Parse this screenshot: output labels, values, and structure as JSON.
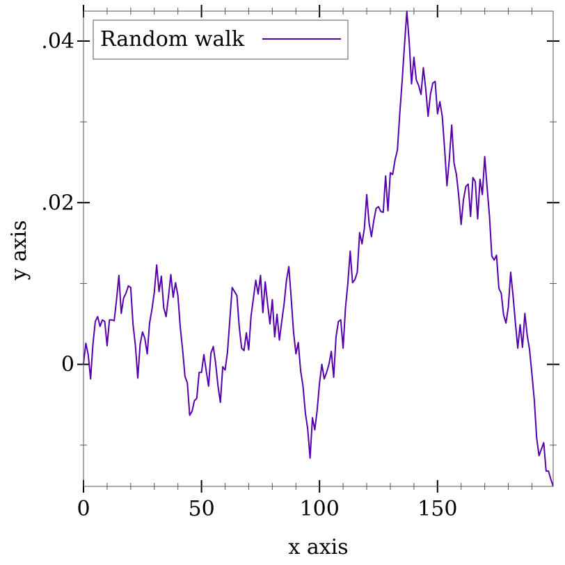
{
  "chart_data": {
    "type": "line",
    "xlabel": "x axis",
    "ylabel": "y axis",
    "xlim": [
      0,
      199
    ],
    "ylim": [
      -0.0151,
      0.0437
    ],
    "x_ticks": [
      {
        "value": 0,
        "label": "0"
      },
      {
        "value": 50,
        "label": "50"
      },
      {
        "value": 100,
        "label": "100"
      },
      {
        "value": 150,
        "label": "150"
      }
    ],
    "y_ticks": [
      {
        "value": 0,
        "label": "0"
      },
      {
        "value": 0.02,
        "label": ".02"
      },
      {
        "value": 0.04,
        "label": ".04"
      }
    ],
    "x_minor_ticks": [
      10,
      20,
      30,
      40,
      60,
      70,
      80,
      90,
      110,
      120,
      130,
      140,
      160,
      170,
      180,
      190
    ],
    "y_minor_ticks": [
      -0.01,
      0.01,
      0.03
    ],
    "grid": false,
    "legend_position": "top-left",
    "series": [
      {
        "name": "Random walk",
        "color": "#5500aa",
        "points": [
          [
            0,
            0.0001
          ],
          [
            1,
            0.0026
          ],
          [
            2,
            0.0012
          ],
          [
            3,
            -0.0018
          ],
          [
            4,
            0.0025
          ],
          [
            5,
            0.0053
          ],
          [
            6,
            0.0059
          ],
          [
            7,
            0.0047
          ],
          [
            8,
            0.0055
          ],
          [
            9,
            0.0053
          ],
          [
            10,
            0.0023
          ],
          [
            11,
            0.0055
          ],
          [
            12,
            0.0055
          ],
          [
            13,
            0.0054
          ],
          [
            14,
            0.008
          ],
          [
            15,
            0.011
          ],
          [
            16,
            0.0063
          ],
          [
            17,
            0.0082
          ],
          [
            18,
            0.0088
          ],
          [
            19,
            0.0097
          ],
          [
            20,
            0.0095
          ],
          [
            21,
            0.0049
          ],
          [
            22,
            0.0023
          ],
          [
            23,
            -0.0017
          ],
          [
            24,
            0.0025
          ],
          [
            25,
            0.004
          ],
          [
            26,
            0.0032
          ],
          [
            27,
            0.0013
          ],
          [
            28,
            0.0051
          ],
          [
            29,
            0.0068
          ],
          [
            30,
            0.0089
          ],
          [
            31,
            0.0123
          ],
          [
            32,
            0.009
          ],
          [
            33,
            0.0109
          ],
          [
            34,
            0.007
          ],
          [
            35,
            0.0059
          ],
          [
            36,
            0.0084
          ],
          [
            37,
            0.0111
          ],
          [
            38,
            0.0083
          ],
          [
            39,
            0.0101
          ],
          [
            40,
            0.0085
          ],
          [
            41,
            0.0046
          ],
          [
            42,
            0.0018
          ],
          [
            43,
            -0.0015
          ],
          [
            44,
            -0.0023
          ],
          [
            45,
            -0.0063
          ],
          [
            46,
            -0.0058
          ],
          [
            47,
            -0.0045
          ],
          [
            48,
            -0.0042
          ],
          [
            49,
            -0.001
          ],
          [
            50,
            -0.001
          ],
          [
            51,
            0.0012
          ],
          [
            52,
            -0.0008
          ],
          [
            53,
            -0.0027
          ],
          [
            54,
            0.0014
          ],
          [
            55,
            0.0022
          ],
          [
            56,
            0.0001
          ],
          [
            57,
            -0.0027
          ],
          [
            58,
            -0.0047
          ],
          [
            59,
            -0.0003
          ],
          [
            60,
            -0.0007
          ],
          [
            61,
            0.0015
          ],
          [
            62,
            0.0055
          ],
          [
            63,
            0.0095
          ],
          [
            64,
            0.009
          ],
          [
            65,
            0.0085
          ],
          [
            66,
            0.0046
          ],
          [
            67,
            0.002
          ],
          [
            68,
            0.0017
          ],
          [
            69,
            0.0039
          ],
          [
            70,
            0.0018
          ],
          [
            71,
            0.006
          ],
          [
            72,
            0.0082
          ],
          [
            73,
            0.0104
          ],
          [
            74,
            0.0087
          ],
          [
            75,
            0.011
          ],
          [
            76,
            0.0064
          ],
          [
            77,
            0.0102
          ],
          [
            78,
            0.0075
          ],
          [
            79,
            0.005
          ],
          [
            80,
            0.008
          ],
          [
            81,
            0.0034
          ],
          [
            82,
            0.0062
          ],
          [
            83,
            0.003
          ],
          [
            84,
            0.0053
          ],
          [
            85,
            0.0075
          ],
          [
            86,
            0.0104
          ],
          [
            87,
            0.0121
          ],
          [
            88,
            0.0082
          ],
          [
            89,
            0.004
          ],
          [
            90,
            0.0013
          ],
          [
            91,
            0.0027
          ],
          [
            92,
            -0.0008
          ],
          [
            93,
            -0.0027
          ],
          [
            94,
            -0.006
          ],
          [
            95,
            -0.008
          ],
          [
            96,
            -0.0116
          ],
          [
            97,
            -0.0066
          ],
          [
            98,
            -0.0081
          ],
          [
            99,
            -0.0057
          ],
          [
            100,
            -0.0023
          ],
          [
            101,
            0.0
          ],
          [
            102,
            -0.0018
          ],
          [
            103,
            -0.001
          ],
          [
            104,
            0.0
          ],
          [
            105,
            0.0016
          ],
          [
            106,
            -0.0016
          ],
          [
            107,
            0.0034
          ],
          [
            108,
            0.0053
          ],
          [
            109,
            0.0055
          ],
          [
            110,
            0.002
          ],
          [
            111,
            0.007
          ],
          [
            112,
            0.01
          ],
          [
            113,
            0.014
          ],
          [
            114,
            0.0101
          ],
          [
            115,
            0.0105
          ],
          [
            116,
            0.0114
          ],
          [
            117,
            0.0163
          ],
          [
            118,
            0.0149
          ],
          [
            119,
            0.0168
          ],
          [
            120,
            0.021
          ],
          [
            121,
            0.0175
          ],
          [
            122,
            0.0158
          ],
          [
            123,
            0.0178
          ],
          [
            124,
            0.0193
          ],
          [
            125,
            0.0195
          ],
          [
            126,
            0.0189
          ],
          [
            127,
            0.0188
          ],
          [
            128,
            0.0233
          ],
          [
            129,
            0.019
          ],
          [
            130,
            0.0237
          ],
          [
            131,
            0.0235
          ],
          [
            132,
            0.0253
          ],
          [
            133,
            0.0265
          ],
          [
            134,
            0.031
          ],
          [
            135,
            0.035
          ],
          [
            136,
            0.0395
          ],
          [
            137,
            0.0437
          ],
          [
            138,
            0.0399
          ],
          [
            139,
            0.0347
          ],
          [
            140,
            0.038
          ],
          [
            141,
            0.0352
          ],
          [
            142,
            0.0345
          ],
          [
            143,
            0.0334
          ],
          [
            144,
            0.0367
          ],
          [
            145,
            0.0341
          ],
          [
            146,
            0.0307
          ],
          [
            147,
            0.0334
          ],
          [
            148,
            0.0348
          ],
          [
            149,
            0.035
          ],
          [
            150,
            0.031
          ],
          [
            151,
            0.0325
          ],
          [
            152,
            0.0307
          ],
          [
            153,
            0.0267
          ],
          [
            154,
            0.0221
          ],
          [
            155,
            0.0254
          ],
          [
            156,
            0.0296
          ],
          [
            157,
            0.0249
          ],
          [
            158,
            0.0235
          ],
          [
            159,
            0.0208
          ],
          [
            160,
            0.0173
          ],
          [
            161,
            0.0204
          ],
          [
            162,
            0.022
          ],
          [
            163,
            0.0223
          ],
          [
            164,
            0.0183
          ],
          [
            165,
            0.0231
          ],
          [
            166,
            0.0226
          ],
          [
            167,
            0.018
          ],
          [
            168,
            0.0229
          ],
          [
            169,
            0.021
          ],
          [
            170,
            0.0257
          ],
          [
            171,
            0.0219
          ],
          [
            172,
            0.0184
          ],
          [
            173,
            0.0134
          ],
          [
            174,
            0.0129
          ],
          [
            175,
            0.0135
          ],
          [
            176,
            0.0094
          ],
          [
            177,
            0.0088
          ],
          [
            178,
            0.0061
          ],
          [
            179,
            0.0051
          ],
          [
            180,
            0.0071
          ],
          [
            181,
            0.0114
          ],
          [
            182,
            0.0085
          ],
          [
            183,
            0.0051
          ],
          [
            184,
            0.002
          ],
          [
            185,
            0.0049
          ],
          [
            186,
            0.0021
          ],
          [
            187,
            0.0063
          ],
          [
            188,
            0.0036
          ],
          [
            189,
            0.0018
          ],
          [
            190,
            -0.0012
          ],
          [
            191,
            -0.0044
          ],
          [
            192,
            -0.0091
          ],
          [
            193,
            -0.0113
          ],
          [
            194,
            -0.0105
          ],
          [
            195,
            -0.0097
          ],
          [
            196,
            -0.0132
          ],
          [
            197,
            -0.0132
          ],
          [
            198,
            -0.0142
          ],
          [
            199,
            -0.0151
          ]
        ]
      }
    ]
  }
}
